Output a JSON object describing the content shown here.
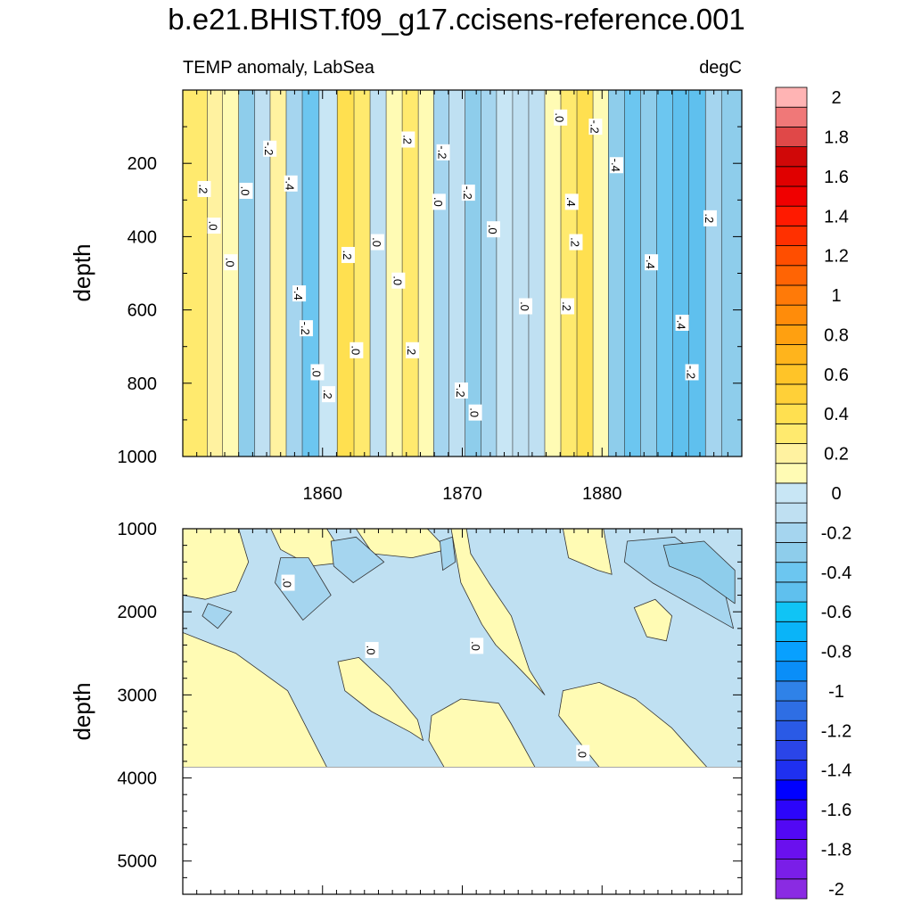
{
  "figure_title": "b.e21.BHIST.f09_g17.ccisens-reference.001",
  "chart_data": [
    {
      "type": "heatmap",
      "panel": "upper",
      "title_left": "TEMP anomaly, LabSea",
      "title_right": "degC",
      "ylabel": "depth",
      "xlabel": "",
      "xlim": [
        1850,
        1890
      ],
      "ylim": [
        0,
        1000
      ],
      "y_reversed": true,
      "xticks": [
        1860,
        1870,
        1880
      ],
      "xtick_labels": [
        "1860",
        "1870",
        "1880"
      ],
      "yticks": [
        200,
        400,
        600,
        800,
        1000
      ],
      "ytick_labels": [
        "200",
        "400",
        "600",
        "800",
        "1000"
      ],
      "column_centers": [
        1851.2,
        1852.3,
        1853.4,
        1854.6,
        1855.7,
        1856.8,
        1858.0,
        1859.1,
        1860.4,
        1861.7,
        1862.8,
        1864.0,
        1865.1,
        1866.3,
        1867.4,
        1868.5,
        1869.6,
        1870.8,
        1871.9,
        1873.0,
        1874.2,
        1875.3,
        1876.5,
        1877.6,
        1878.8,
        1879.9,
        1881.0,
        1882.2,
        1883.3,
        1884.5,
        1885.6,
        1886.8,
        1888.0,
        1889.1
      ],
      "column_values": [
        0.3,
        0.2,
        0.1,
        -0.3,
        -0.1,
        0.2,
        -0.2,
        -0.4,
        0.0,
        0.4,
        0.3,
        -0.1,
        0.1,
        0.3,
        0.1,
        -0.2,
        -0.1,
        -0.3,
        -0.2,
        0.0,
        -0.1,
        -0.1,
        0.1,
        0.3,
        0.4,
        0.1,
        -0.3,
        -0.4,
        -0.3,
        -0.4,
        -0.5,
        -0.5,
        -0.2,
        -0.3
      ],
      "contour_labels": [
        {
          "text": "-.2",
          "x": 1856.2,
          "y": 160
        },
        {
          "text": ".2",
          "x": 1851.5,
          "y": 270
        },
        {
          "text": ".0",
          "x": 1854.5,
          "y": 275
        },
        {
          "text": "-.4",
          "x": 1857.7,
          "y": 255
        },
        {
          "text": ".0",
          "x": 1852.2,
          "y": 370
        },
        {
          "text": ".0",
          "x": 1853.4,
          "y": 470
        },
        {
          "text": "-.4",
          "x": 1858.3,
          "y": 555
        },
        {
          "text": "-.2",
          "x": 1858.8,
          "y": 650
        },
        {
          "text": ".0",
          "x": 1859.6,
          "y": 770
        },
        {
          "text": ".2",
          "x": 1860.4,
          "y": 830
        },
        {
          "text": ".2",
          "x": 1861.8,
          "y": 450
        },
        {
          "text": ".0",
          "x": 1863.9,
          "y": 415
        },
        {
          "text": ".0",
          "x": 1865.4,
          "y": 520
        },
        {
          "text": ".0",
          "x": 1862.4,
          "y": 710
        },
        {
          "text": ".2",
          "x": 1866.1,
          "y": 135
        },
        {
          "text": ".2",
          "x": 1866.4,
          "y": 710
        },
        {
          "text": ".0",
          "x": 1868.3,
          "y": 305
        },
        {
          "text": "-.2",
          "x": 1868.6,
          "y": 170
        },
        {
          "text": "-.2",
          "x": 1870.4,
          "y": 280
        },
        {
          "text": ".0",
          "x": 1872.2,
          "y": 380
        },
        {
          "text": "-.2",
          "x": 1869.9,
          "y": 820
        },
        {
          "text": ".0",
          "x": 1870.9,
          "y": 880
        },
        {
          "text": ".0",
          "x": 1874.5,
          "y": 590
        },
        {
          "text": ".0",
          "x": 1877.0,
          "y": 75
        },
        {
          "text": "-.2",
          "x": 1879.5,
          "y": 100
        },
        {
          "text": ".4",
          "x": 1877.8,
          "y": 305
        },
        {
          "text": ".2",
          "x": 1878.1,
          "y": 415
        },
        {
          "text": ".2",
          "x": 1877.5,
          "y": 590
        },
        {
          "text": "-.4",
          "x": 1881.0,
          "y": 205
        },
        {
          "text": "-.4",
          "x": 1883.5,
          "y": 470
        },
        {
          "text": "-.4",
          "x": 1885.7,
          "y": 635
        },
        {
          "text": "-.2",
          "x": 1886.4,
          "y": 770
        },
        {
          "text": ".2",
          "x": 1887.7,
          "y": 350
        }
      ]
    },
    {
      "type": "heatmap",
      "panel": "lower",
      "ylabel": "depth",
      "xlabel": "",
      "xlim": [
        1850,
        1890
      ],
      "ylim": [
        1000,
        5400
      ],
      "y_reversed": true,
      "yticks": [
        1000,
        2000,
        3000,
        4000,
        5000
      ],
      "ytick_labels": [
        "1000",
        "2000",
        "3000",
        "4000",
        "5000"
      ],
      "ocean_bottom_depth": 3870,
      "regions": [
        {
          "value": -0.1,
          "outline": [
            [
              1850,
              1000
            ],
            [
              1890,
              1000
            ],
            [
              1890,
              3870
            ],
            [
              1850,
              3870
            ]
          ]
        },
        {
          "value": 0.1,
          "outline": [
            [
              1850,
              2250
            ],
            [
              1851.5,
              2350
            ],
            [
              1853.8,
              2500
            ],
            [
              1857.5,
              2950
            ],
            [
              1860.3,
              3870
            ],
            [
              1850,
              3870
            ]
          ]
        },
        {
          "value": 0.1,
          "outline": [
            [
              1850,
              1000
            ],
            [
              1854.0,
              1000
            ],
            [
              1854.7,
              1400
            ],
            [
              1853.8,
              1750
            ],
            [
              1851.6,
              1850
            ],
            [
              1850,
              1800
            ]
          ]
        },
        {
          "value": 0.1,
          "outline": [
            [
              1856.3,
              1000
            ],
            [
              1860.3,
              1000
            ],
            [
              1861.8,
              1400
            ],
            [
              1859.2,
              1450
            ],
            [
              1857.0,
              1250
            ]
          ]
        },
        {
          "value": 0.1,
          "outline": [
            [
              1862.4,
              1000
            ],
            [
              1867.5,
              1000
            ],
            [
              1868.9,
              1250
            ],
            [
              1866.4,
              1350
            ],
            [
              1863.6,
              1300
            ]
          ]
        },
        {
          "value": 0.1,
          "outline": [
            [
              1869.2,
              1000
            ],
            [
              1870.3,
              1000
            ],
            [
              1870.6,
              1300
            ],
            [
              1871.9,
              1650
            ],
            [
              1873.5,
              2050
            ],
            [
              1874.8,
              2700
            ],
            [
              1875.9,
              3000
            ],
            [
              1873.9,
              2650
            ],
            [
              1872.4,
              2400
            ],
            [
              1871.4,
              2150
            ],
            [
              1869.9,
              1650
            ]
          ]
        },
        {
          "value": 0.1,
          "outline": [
            [
              1877.2,
              1000
            ],
            [
              1880.1,
              1000
            ],
            [
              1880.7,
              1550
            ],
            [
              1879.7,
              1500
            ],
            [
              1877.6,
              1350
            ]
          ]
        },
        {
          "value": 0.1,
          "outline": [
            [
              1861.1,
              2600
            ],
            [
              1862.6,
              2550
            ],
            [
              1864.8,
              2900
            ],
            [
              1866.8,
              3300
            ],
            [
              1867.2,
              3550
            ],
            [
              1866.3,
              3450
            ],
            [
              1863.5,
              3200
            ],
            [
              1861.6,
              2950
            ]
          ]
        },
        {
          "value": 0.1,
          "outline": [
            [
              1867.8,
              3250
            ],
            [
              1869.9,
              3050
            ],
            [
              1872.6,
              3100
            ],
            [
              1873.5,
              3350
            ],
            [
              1875.2,
              3870
            ],
            [
              1868.7,
              3870
            ],
            [
              1867.6,
              3550
            ]
          ]
        },
        {
          "value": 0.1,
          "outline": [
            [
              1877.2,
              2950
            ],
            [
              1879.8,
              2850
            ],
            [
              1882.4,
              3050
            ],
            [
              1885.0,
              3400
            ],
            [
              1887.5,
              3870
            ],
            [
              1879.8,
              3870
            ],
            [
              1878.3,
              3550
            ],
            [
              1876.9,
              3250
            ]
          ]
        },
        {
          "value": 0.1,
          "outline": [
            [
              1882.3,
              1950
            ],
            [
              1883.8,
              1850
            ],
            [
              1885.0,
              2050
            ],
            [
              1884.6,
              2350
            ],
            [
              1883.2,
              2300
            ]
          ]
        },
        {
          "value": -0.2,
          "outline": [
            [
              1857.0,
              1350
            ],
            [
              1859.0,
              1350
            ],
            [
              1860.6,
              1800
            ],
            [
              1858.6,
              2100
            ],
            [
              1856.6,
              1650
            ]
          ]
        },
        {
          "value": -0.2,
          "outline": [
            [
              1860.6,
              1150
            ],
            [
              1862.4,
              1100
            ],
            [
              1864.4,
              1400
            ],
            [
              1862.2,
              1650
            ],
            [
              1860.8,
              1450
            ]
          ]
        },
        {
          "value": -0.2,
          "outline": [
            [
              1868.4,
              1150
            ],
            [
              1869.3,
              1100
            ],
            [
              1869.5,
              1400
            ],
            [
              1868.6,
              1500
            ]
          ]
        },
        {
          "value": -0.2,
          "outline": [
            [
              1881.8,
              1150
            ],
            [
              1885.2,
              1100
            ],
            [
              1888.4,
              1500
            ],
            [
              1889.4,
              2200
            ],
            [
              1887.3,
              2000
            ],
            [
              1883.6,
              1650
            ],
            [
              1881.6,
              1400
            ]
          ]
        },
        {
          "value": -0.3,
          "outline": [
            [
              1884.4,
              1200
            ],
            [
              1887.3,
              1150
            ],
            [
              1889.5,
              1500
            ],
            [
              1889.5,
              1900
            ],
            [
              1887.0,
              1600
            ],
            [
              1884.8,
              1450
            ]
          ]
        },
        {
          "value": -0.2,
          "outline": [
            [
              1851.8,
              1900
            ],
            [
              1853.5,
              2000
            ],
            [
              1852.5,
              2200
            ],
            [
              1851.4,
              2050
            ]
          ]
        }
      ],
      "contour_labels": [
        {
          "text": ".0",
          "x": 1857.5,
          "y": 1650
        },
        {
          "text": ".0",
          "x": 1863.5,
          "y": 2460
        },
        {
          "text": ".0",
          "x": 1871.0,
          "y": 2410
        },
        {
          "text": ".0",
          "x": 1878.6,
          "y": 3700
        }
      ]
    },
    {
      "type": "colorbar",
      "levels": [
        -2.0,
        -1.9,
        -1.8,
        -1.7,
        -1.6,
        -1.5,
        -1.4,
        -1.3,
        -1.2,
        -1.1,
        -1.0,
        -0.9,
        -0.8,
        -0.7,
        -0.6,
        -0.5,
        -0.4,
        -0.3,
        -0.2,
        -0.1,
        0.0,
        0.1,
        0.2,
        0.3,
        0.4,
        0.5,
        0.6,
        0.7,
        0.8,
        0.9,
        1.0,
        1.1,
        1.2,
        1.3,
        1.4,
        1.5,
        1.6,
        1.7,
        1.8,
        1.9,
        2.0
      ],
      "colors": [
        "#8a2be2",
        "#7a1ee8",
        "#6a10ee",
        "#5208f4",
        "#2c05fa",
        "#0000ff",
        "#1f30f0",
        "#2a45e8",
        "#2a5ae6",
        "#2e6ee4",
        "#2f82e8",
        "#0a8ef8",
        "#08a0ff",
        "#0ab4f8",
        "#10c4f5",
        "#5fc0ee",
        "#6cc6f0",
        "#8ecdeb",
        "#a5d5ef",
        "#bfe0f2",
        "#c8e6f5",
        "#fffbb4",
        "#fff2a0",
        "#ffea6e",
        "#ffe050",
        "#ffd038",
        "#ffc428",
        "#ffb41c",
        "#ffa010",
        "#ff8c0a",
        "#ff7a08",
        "#ff6404",
        "#ff4e00",
        "#ff3000",
        "#ff1a00",
        "#f00000",
        "#e00000",
        "#d00808",
        "#e04848",
        "#f07878",
        "#ffb4b4"
      ],
      "labels": [
        "-2",
        "-1.8",
        "-1.6",
        "-1.4",
        "-1.2",
        "-1",
        "-0.8",
        "-0.6",
        "-0.4",
        "-0.2",
        "0",
        "0.2",
        "0.4",
        "0.6",
        "0.8",
        "1",
        "1.2",
        "1.4",
        "1.6",
        "1.8",
        "2"
      ],
      "label_values": [
        -2.0,
        -1.8,
        -1.6,
        -1.4,
        -1.2,
        -1.0,
        -0.8,
        -0.6,
        -0.4,
        -0.2,
        0.0,
        0.2,
        0.4,
        0.6,
        0.8,
        1.0,
        1.2,
        1.4,
        1.6,
        1.8,
        2.0
      ]
    }
  ]
}
